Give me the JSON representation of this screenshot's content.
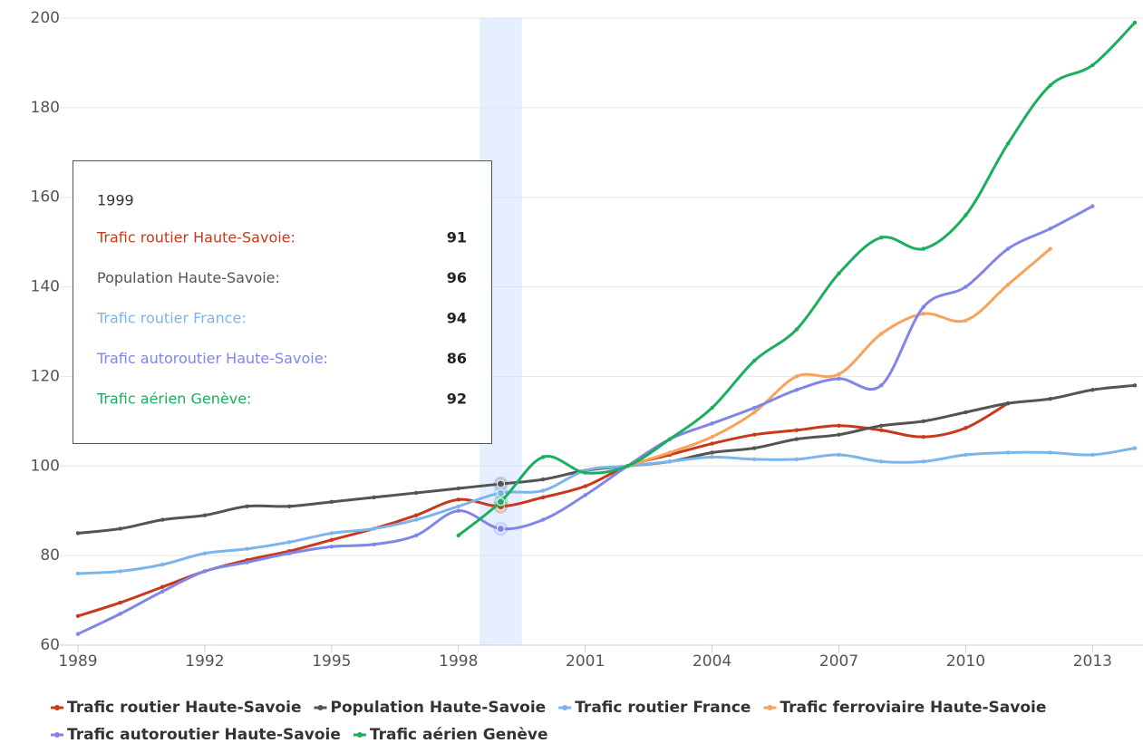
{
  "chart_data": {
    "type": "line",
    "x": [
      1989,
      1990,
      1991,
      1992,
      1993,
      1994,
      1995,
      1996,
      1997,
      1998,
      1999,
      2000,
      2001,
      2002,
      2003,
      2004,
      2005,
      2006,
      2007,
      2008,
      2009,
      2010,
      2011,
      2012,
      2013,
      2014
    ],
    "xlim": [
      1989,
      2014
    ],
    "xticks": [
      1989,
      1992,
      1995,
      1998,
      2001,
      2004,
      2007,
      2010,
      2013
    ],
    "ylim": [
      60,
      200
    ],
    "yticks": [
      60,
      80,
      100,
      120,
      140,
      160,
      180,
      200
    ],
    "grid": true,
    "smooth": true,
    "highlight_x": 1999,
    "legend": "bottom",
    "series": [
      {
        "name": "Trafic routier Haute-Savoie",
        "color": "#c8391b",
        "values": [
          66.5,
          69.5,
          73,
          76.5,
          79,
          81,
          83.5,
          86,
          89,
          92.5,
          91,
          93,
          95.5,
          100,
          102.5,
          105,
          107,
          108,
          109,
          108,
          106.5,
          108.5,
          114,
          null,
          null,
          null
        ]
      },
      {
        "name": "Population Haute-Savoie",
        "color": "#545454",
        "values": [
          85,
          86,
          88,
          89,
          91,
          91,
          92,
          93,
          94,
          95,
          96,
          97,
          99,
          100,
          101,
          103,
          104,
          106,
          107,
          109,
          110,
          112,
          114,
          115,
          117,
          118
        ]
      },
      {
        "name": "Trafic routier France",
        "color": "#7cb5ec",
        "values": [
          76,
          76.5,
          78,
          80.5,
          81.5,
          83,
          85,
          86,
          88,
          91,
          94,
          94.5,
          99,
          100,
          101,
          102,
          101.5,
          101.5,
          102.5,
          101,
          101,
          102.5,
          103,
          103,
          102.5,
          104
        ]
      },
      {
        "name": "Trafic ferroviaire Haute-Savoie",
        "color": "#f7a35c",
        "values": [
          null,
          null,
          null,
          null,
          null,
          null,
          null,
          null,
          null,
          null,
          null,
          null,
          null,
          100,
          103,
          106.5,
          112,
          120,
          120.5,
          129.5,
          134,
          132.5,
          140.5,
          148.5,
          null,
          null
        ]
      },
      {
        "name": "Trafic autoroutier Haute-Savoie",
        "color": "#8085e9",
        "values": [
          62.5,
          67,
          72,
          76.5,
          78.5,
          80.5,
          82,
          82.5,
          84.5,
          90,
          86,
          88,
          93.5,
          100,
          106,
          109.5,
          113,
          117,
          119.5,
          118,
          135.5,
          140,
          148.5,
          153,
          158,
          null
        ]
      },
      {
        "name": "Trafic aérien Genève",
        "color": "#1aaf5d",
        "values": [
          null,
          null,
          null,
          null,
          null,
          null,
          null,
          null,
          null,
          84.5,
          92,
          102,
          98.5,
          100,
          106,
          113,
          123.5,
          130.5,
          143,
          151,
          148.5,
          156,
          172,
          185,
          189.5,
          199
        ]
      }
    ],
    "tooltip": {
      "title": "1999",
      "rows": [
        {
          "label": "Trafic routier Haute-Savoie:",
          "value": 91,
          "color": "#c8391b"
        },
        {
          "label": "Population Haute-Savoie:",
          "value": 96,
          "color": "#545454"
        },
        {
          "label": "Trafic routier France:",
          "value": 94,
          "color": "#7cb5ec"
        },
        {
          "label": "Trafic autoroutier Haute-Savoie:",
          "value": 86,
          "color": "#8085e9"
        },
        {
          "label": "Trafic aérien Genève:",
          "value": 92,
          "color": "#1aaf5d"
        }
      ]
    }
  }
}
